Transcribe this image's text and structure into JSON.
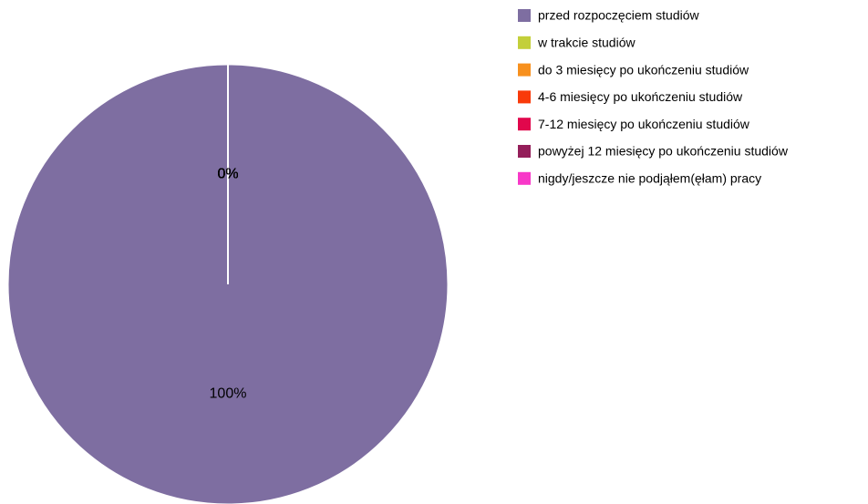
{
  "chart_data": {
    "type": "pie",
    "categories": [
      "przed rozpoczęciem studiów",
      "w trakcie studiów",
      "do 3 miesięcy po ukończeniu studiów",
      "4-6 miesięcy po ukończeniu studiów",
      "7-12 miesięcy po ukończeniu studiów",
      "powyżej 12 miesięcy po ukończeniu studiów",
      "nigdy/jeszcze nie podjąłem(ęłam) pracy"
    ],
    "values": [
      100,
      0,
      0,
      0,
      0,
      0,
      0
    ],
    "value_labels": [
      "100%",
      "0%",
      "0%",
      "0%",
      "0%",
      "0%",
      "0%"
    ],
    "colors": [
      "#7e6ea1",
      "#c3cf3a",
      "#f7901e",
      "#f93a0a",
      "#e1074c",
      "#941e5a",
      "#f838c8"
    ]
  }
}
